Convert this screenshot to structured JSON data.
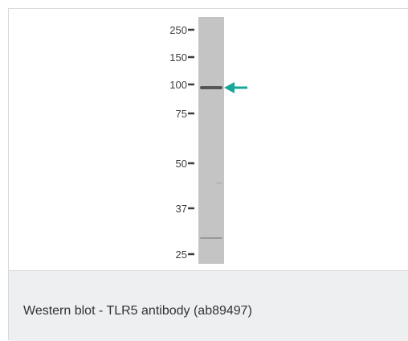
{
  "figure": {
    "caption": "Western blot - TLR5 antibody (ab89497)",
    "markers": [
      {
        "label": "250",
        "kda": 250
      },
      {
        "label": "150",
        "kda": 150
      },
      {
        "label": "100",
        "kda": 100
      },
      {
        "label": "75",
        "kda": 75
      },
      {
        "label": "50",
        "kda": 50
      },
      {
        "label": "37",
        "kda": 37
      },
      {
        "label": "25",
        "kda": 25
      }
    ],
    "detected_band_kda": 97,
    "colors": {
      "lane": "#c4c4c4",
      "arrow": "#18a89a",
      "band": "#4a4a4a",
      "caption_bg": "#eeeff0"
    }
  }
}
